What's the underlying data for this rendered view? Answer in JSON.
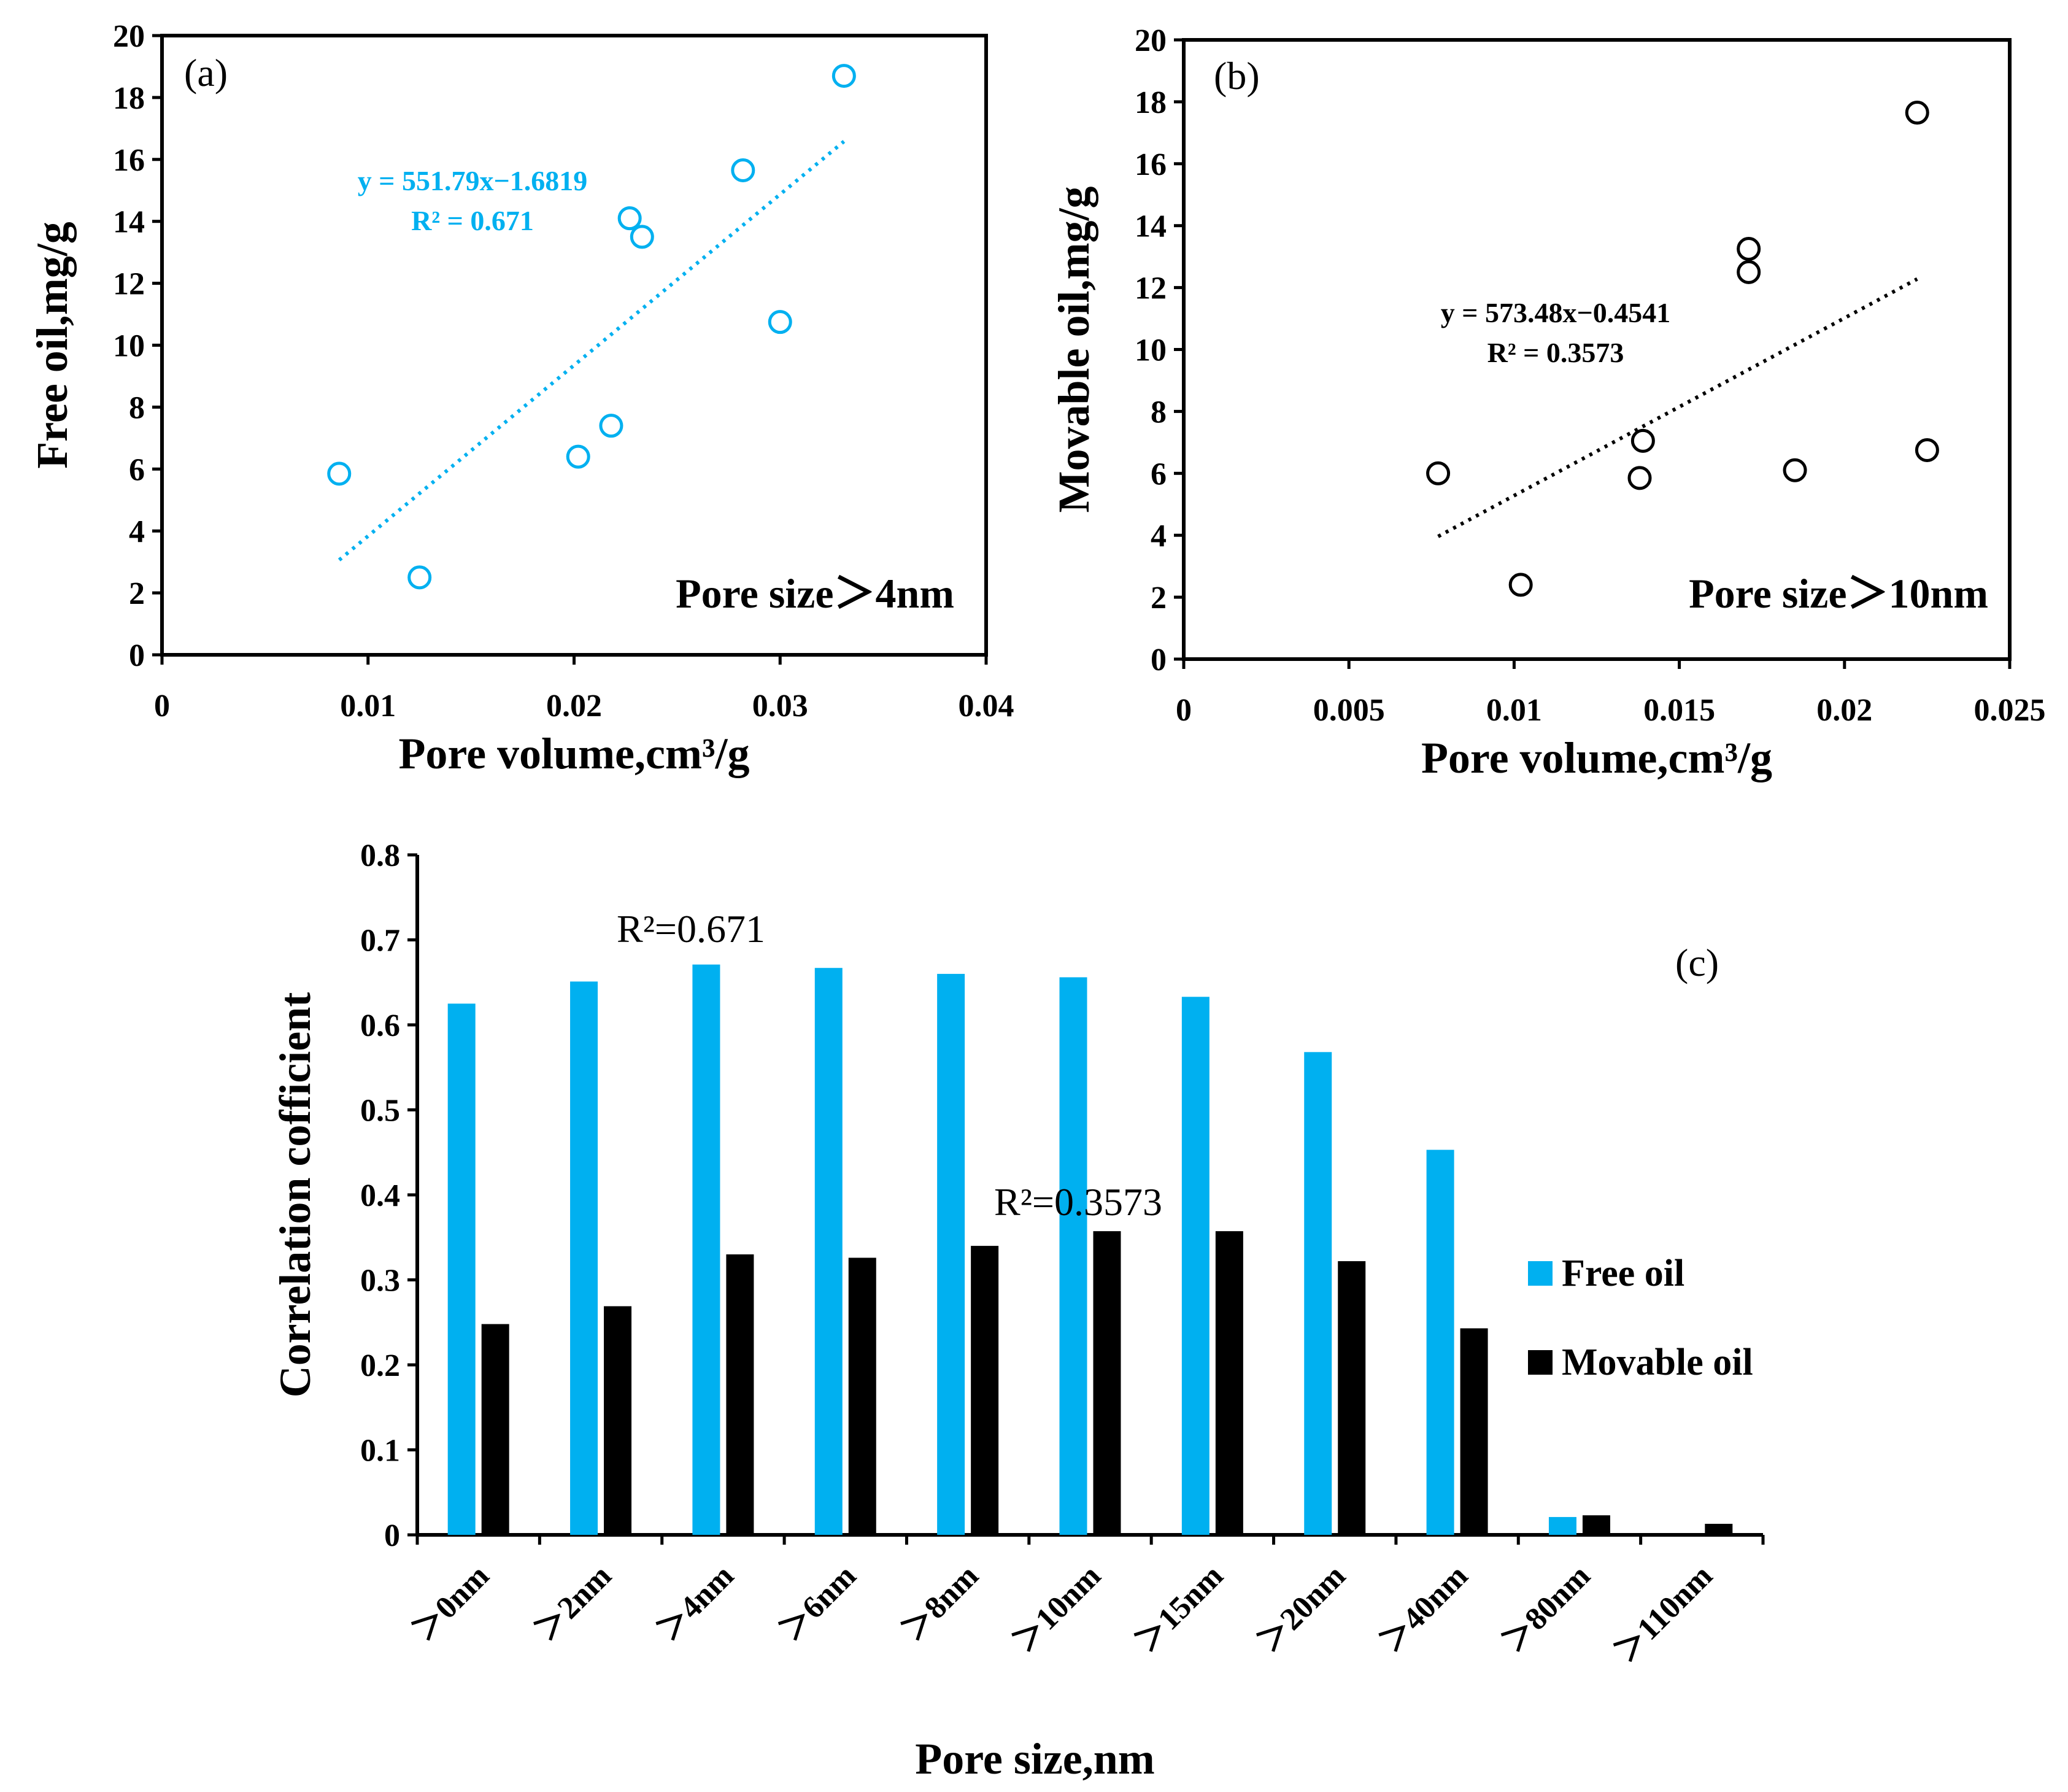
{
  "colors": {
    "free": "#00b0f0",
    "movable": "#000000"
  },
  "chart_data": [
    {
      "type": "scatter",
      "panel_label": "(a)",
      "xlabel": "Pore volume,cm³/g",
      "ylabel": "Free oil,mg/g",
      "xlim": [
        0,
        0.04
      ],
      "ylim": [
        0,
        20
      ],
      "xticks": [
        "0",
        "0.01",
        "0.02",
        "0.03",
        "0.04"
      ],
      "yticks": [
        "0",
        "2",
        "4",
        "6",
        "8",
        "10",
        "12",
        "14",
        "16",
        "18",
        "20"
      ],
      "points": [
        [
          0.0086,
          5.85
        ],
        [
          0.0125,
          2.5
        ],
        [
          0.0202,
          6.4
        ],
        [
          0.0218,
          7.4
        ],
        [
          0.0227,
          14.1
        ],
        [
          0.0233,
          13.5
        ],
        [
          0.0282,
          15.65
        ],
        [
          0.03,
          10.75
        ],
        [
          0.0331,
          18.7
        ]
      ],
      "trendline": {
        "slope": 551.79,
        "intercept": -1.6819,
        "x_range": [
          0.0086,
          0.0331
        ]
      },
      "equation": "y = 551.79x−1.6819",
      "r2": "R² = 0.671",
      "annotation": "Pore size＞4nm",
      "color": "#00b0f0"
    },
    {
      "type": "scatter",
      "panel_label": "(b)",
      "xlabel": "Pore volume,cm³/g",
      "ylabel": "Movable oil,mg/g",
      "xlim": [
        0,
        0.025
      ],
      "ylim": [
        0,
        20
      ],
      "xticks": [
        "0",
        "0.005",
        "0.01",
        "0.015",
        "0.02",
        "0.025"
      ],
      "yticks": [
        "0",
        "2",
        "4",
        "6",
        "8",
        "10",
        "12",
        "14",
        "16",
        "18",
        "20"
      ],
      "points": [
        [
          0.0077,
          6.0
        ],
        [
          0.0102,
          2.4
        ],
        [
          0.0138,
          5.85
        ],
        [
          0.0139,
          7.05
        ],
        [
          0.0171,
          13.25
        ],
        [
          0.0171,
          12.5
        ],
        [
          0.0185,
          6.1
        ],
        [
          0.0222,
          17.65
        ],
        [
          0.0225,
          6.75
        ]
      ],
      "trendline": {
        "slope": 573.48,
        "intercept": -0.4541,
        "x_range": [
          0.0077,
          0.0222
        ]
      },
      "equation": "y = 573.48x−0.4541",
      "r2": "R² = 0.3573",
      "annotation": "Pore size＞10nm",
      "color": "#000000"
    },
    {
      "type": "bar",
      "panel_label": "(c)",
      "xlabel": "Pore size,nm",
      "ylabel": "Correlation cofficient",
      "ylim": [
        0,
        0.8
      ],
      "yticks": [
        "0",
        "0.1",
        "0.2",
        "0.3",
        "0.4",
        "0.5",
        "0.6",
        "0.7",
        "0.8"
      ],
      "categories": [
        "＞0nm",
        "＞2nm",
        "＞4nm",
        "＞6nm",
        "＞8nm",
        "＞10nm",
        "＞15nm",
        "＞20nm",
        "＞40nm",
        "＞80nm",
        "＞110nm"
      ],
      "series": [
        {
          "name": "Free oil",
          "values": [
            0.625,
            0.651,
            0.671,
            0.667,
            0.66,
            0.656,
            0.633,
            0.568,
            0.453,
            0.021,
            0
          ]
        },
        {
          "name": "Movable oil",
          "values": [
            0.248,
            0.269,
            0.33,
            0.326,
            0.34,
            0.3573,
            0.3573,
            0.322,
            0.243,
            0.023,
            0.013
          ]
        }
      ],
      "annotations": [
        "R²=0.671",
        "R²=0.3573"
      ],
      "legend_position": "right"
    }
  ]
}
